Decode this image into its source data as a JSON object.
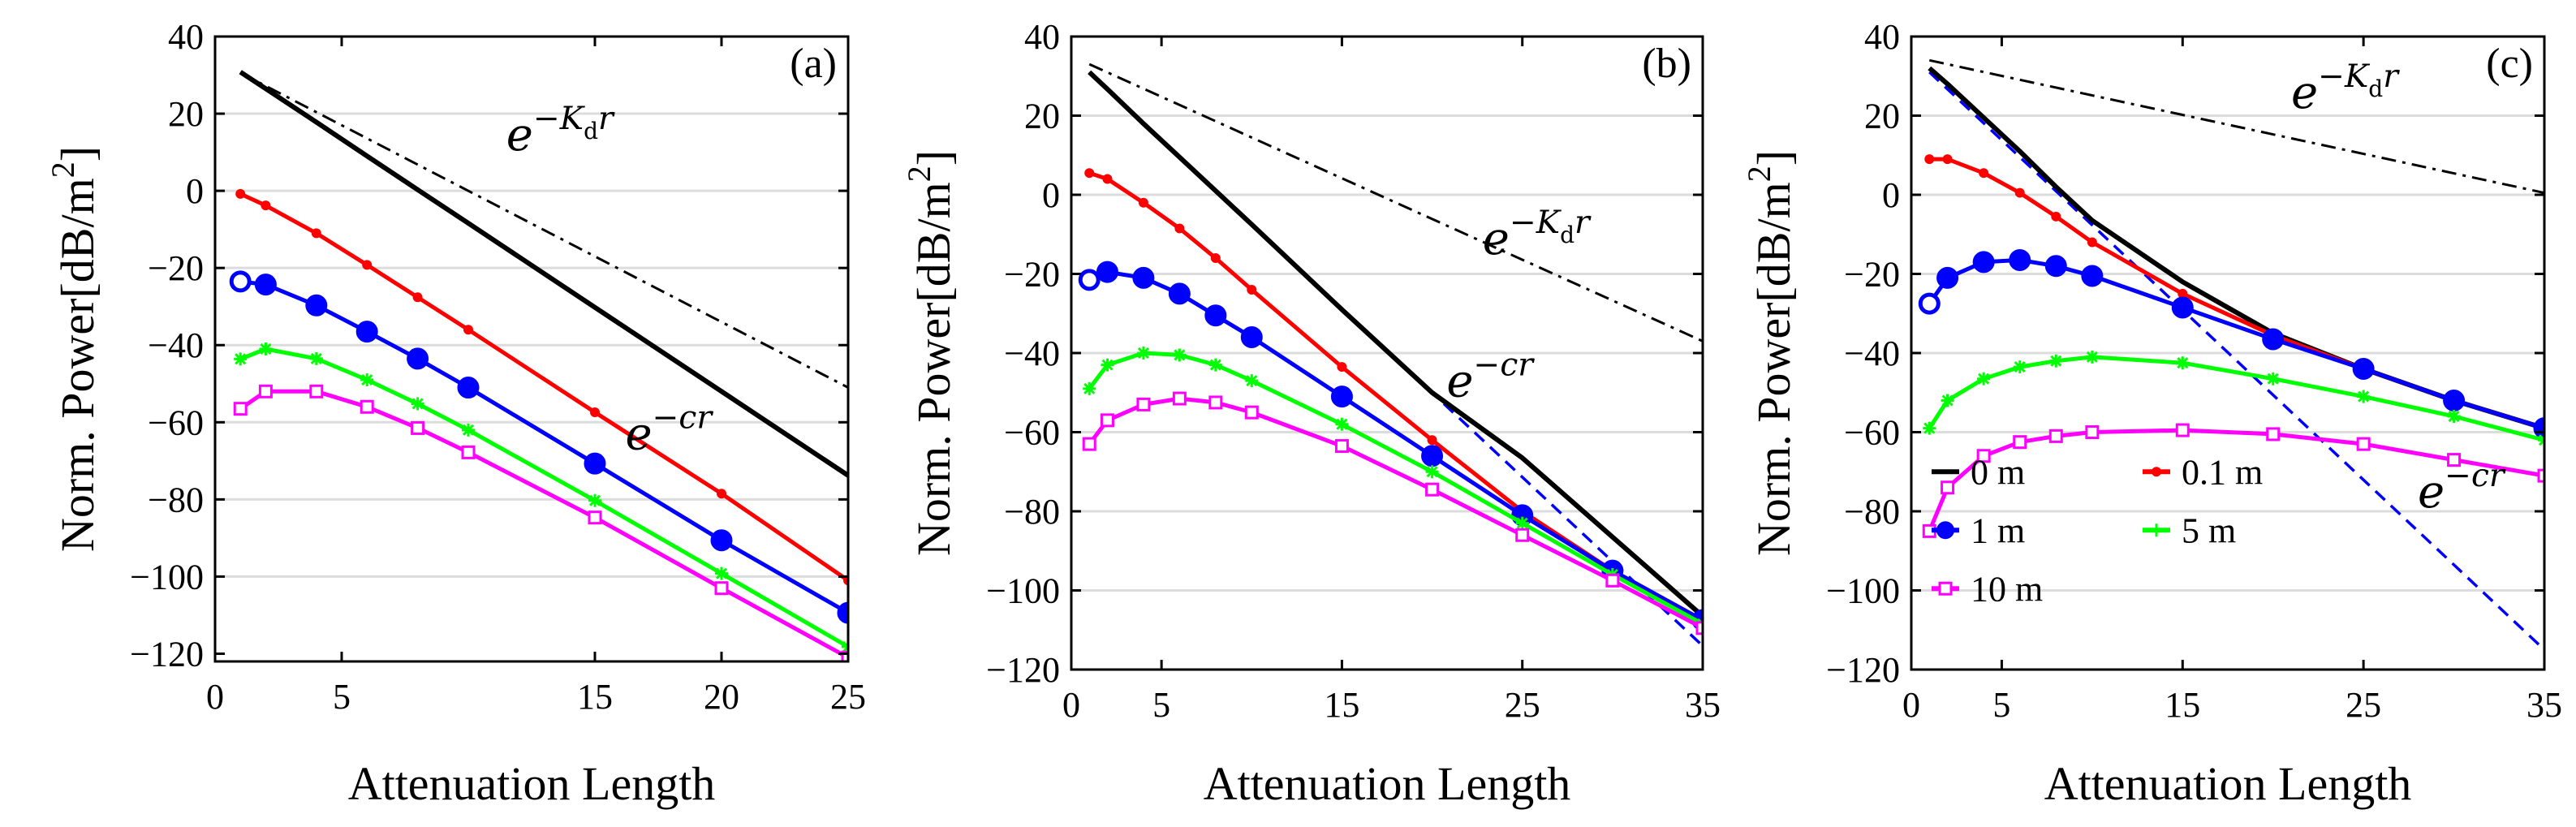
{
  "chart_data": [
    {
      "type": "line",
      "panel_label": "(a)",
      "xlabel": "Attenuation Length",
      "ylabel": "Norm. Power[dB/m",
      "ylabel_sup": "2",
      "ylabel_end": "]",
      "xlim": [
        0,
        25
      ],
      "ylim": [
        -122,
        40
      ],
      "xticks": [
        0,
        5,
        15,
        20,
        25
      ],
      "yticks": [
        40,
        20,
        0,
        -20,
        -40,
        -60,
        -80,
        -100,
        -120
      ],
      "grid": true,
      "annotations": [
        {
          "base": "e",
          "sup": "−K",
          "sub": "d",
          "tail": "r",
          "x": 11.5,
          "y": 10.5,
          "size": 56
        },
        {
          "base": "e",
          "sup": "−cr",
          "x": 16.2,
          "y": -67,
          "size": 56
        }
      ],
      "series": [
        {
          "name": "e^{-K_d r}",
          "style": "dashdot",
          "color": "#000000",
          "x": [
            1,
            25
          ],
          "y": [
            30.6,
            -51
          ]
        },
        {
          "name": "e^{-cr}",
          "style": "dashed",
          "color": "#0000ff",
          "x": [
            1,
            25
          ],
          "y": [
            30.6,
            -74
          ]
        },
        {
          "name": "0 m",
          "color": "#000000",
          "marker": "none",
          "width": 6,
          "x": [
            1,
            2,
            4,
            6,
            8,
            10,
            15,
            20,
            25
          ],
          "y": [
            30.8,
            26.5,
            17.8,
            9,
            0.3,
            -8.4,
            -30.2,
            -52,
            -73.8
          ]
        },
        {
          "name": "0.1 m",
          "color": "#ff0000",
          "marker": "dot",
          "x": [
            1,
            2,
            4,
            6,
            8,
            10,
            15,
            20,
            25
          ],
          "y": [
            -0.8,
            -3.8,
            -11,
            -19.2,
            -27.6,
            -36,
            -57.4,
            -78.5,
            -101
          ]
        },
        {
          "name": "1 m",
          "color": "#0000ff",
          "marker": "circle",
          "x": [
            1,
            2,
            4,
            6,
            8,
            10,
            15,
            20,
            25
          ],
          "y": [
            -23.5,
            -24.3,
            -29.7,
            -36.5,
            -43.5,
            -51,
            -70.7,
            -90.6,
            -109.4
          ]
        },
        {
          "name": "5 m",
          "color": "#00ff00",
          "marker": "star",
          "x": [
            1,
            2,
            4,
            6,
            8,
            10,
            15,
            20,
            25
          ],
          "y": [
            -43.6,
            -41,
            -43.5,
            -49,
            -55.2,
            -62,
            -80.3,
            -99.2,
            -118.2
          ]
        },
        {
          "name": "10 m",
          "color": "#ff00ff",
          "marker": "square",
          "x": [
            1,
            2,
            4,
            6,
            8,
            10,
            15,
            20,
            25
          ],
          "y": [
            -56.5,
            -52,
            -52,
            -56,
            -61.5,
            -67.8,
            -84.7,
            -103,
            -121
          ]
        }
      ]
    },
    {
      "type": "line",
      "panel_label": "(b)",
      "xlabel": "Attenuation Length",
      "ylabel": "Norm. Power[dB/m",
      "ylabel_sup": "2",
      "ylabel_end": "]",
      "xlim": [
        0,
        35
      ],
      "ylim": [
        -120,
        40
      ],
      "xticks": [
        0,
        5,
        15,
        25,
        35
      ],
      "yticks": [
        40,
        20,
        0,
        -20,
        -40,
        -60,
        -80,
        -100,
        -120
      ],
      "grid": true,
      "annotations": [
        {
          "base": "e",
          "sup": "−K",
          "sub": "d",
          "tail": "r",
          "x": 22.8,
          "y": -15,
          "size": 56
        },
        {
          "base": "e",
          "sup": "−cr",
          "x": 20.8,
          "y": -51,
          "size": 56
        }
      ],
      "series": [
        {
          "name": "e^{-K_d r}",
          "style": "dashdot",
          "color": "#000000",
          "x": [
            1,
            35
          ],
          "y": [
            33,
            -37
          ]
        },
        {
          "name": "e^{-cr}",
          "style": "dashed",
          "color": "#0000ff",
          "x": [
            1,
            35
          ],
          "y": [
            31,
            -114
          ]
        },
        {
          "name": "0 m",
          "color": "#000000",
          "marker": "none",
          "width": 6,
          "x": [
            1,
            2,
            4,
            6,
            8,
            10,
            15,
            20,
            25,
            30,
            35
          ],
          "y": [
            31,
            26.7,
            18,
            9.5,
            1,
            -7.5,
            -29,
            -50,
            -66.5,
            -86.5,
            -106.5
          ]
        },
        {
          "name": "0.1 m",
          "color": "#ff0000",
          "marker": "dot",
          "x": [
            1,
            2,
            4,
            6,
            8,
            10,
            15,
            20,
            25,
            30,
            35
          ],
          "y": [
            5.5,
            4,
            -2,
            -8.5,
            -16,
            -24,
            -43.5,
            -62,
            -80,
            -95,
            -107.5
          ]
        },
        {
          "name": "1 m",
          "color": "#0000ff",
          "marker": "circle",
          "x": [
            1,
            2,
            4,
            6,
            8,
            10,
            15,
            20,
            25,
            30,
            35
          ],
          "y": [
            -21.5,
            -19.5,
            -21,
            -25,
            -30.5,
            -36,
            -51,
            -66,
            -81,
            -95,
            -107.5
          ]
        },
        {
          "name": "5 m",
          "color": "#00ff00",
          "marker": "star",
          "x": [
            1,
            2,
            4,
            6,
            8,
            10,
            15,
            20,
            25,
            30,
            35
          ],
          "y": [
            -49,
            -43,
            -40,
            -40.5,
            -43,
            -47,
            -58,
            -70,
            -83,
            -96,
            -108.5
          ]
        },
        {
          "name": "10 m",
          "color": "#ff00ff",
          "marker": "square",
          "x": [
            1,
            2,
            4,
            6,
            8,
            10,
            15,
            20,
            25,
            30,
            35
          ],
          "y": [
            -63,
            -57,
            -53,
            -51.5,
            -52.5,
            -55,
            -63.5,
            -74.5,
            -86,
            -97.5,
            -109.5
          ]
        }
      ]
    },
    {
      "type": "line",
      "panel_label": "(c)",
      "xlabel": "Attenuation Length",
      "ylabel": "Norm. Power[dB/m",
      "ylabel_sup": "2",
      "ylabel_end": "]",
      "xlim": [
        0,
        35
      ],
      "ylim": [
        -120,
        40
      ],
      "xticks": [
        0,
        5,
        15,
        25,
        35
      ],
      "yticks": [
        40,
        20,
        0,
        -20,
        -40,
        -60,
        -80,
        -100,
        -120
      ],
      "grid": true,
      "legend_position": "lower-left",
      "annotations": [
        {
          "base": "e",
          "sup": "−K",
          "sub": "d",
          "tail": "r",
          "x": 21,
          "y": 22,
          "size": 56
        },
        {
          "base": "e",
          "sup": "−cr",
          "x": 28,
          "y": -79,
          "size": 56
        }
      ],
      "series": [
        {
          "name": "e^{-K_d r}",
          "style": "dashdot",
          "color": "#000000",
          "x": [
            1,
            35
          ],
          "y": [
            34,
            0.5
          ]
        },
        {
          "name": "e^{-cr}",
          "style": "dashed",
          "color": "#0000ff",
          "x": [
            1,
            35
          ],
          "y": [
            31,
            -115
          ]
        },
        {
          "name": "0 m",
          "color": "#000000",
          "marker": "none",
          "width": 6,
          "x": [
            1,
            2,
            4,
            6,
            8,
            10,
            15,
            20,
            25,
            30,
            35
          ],
          "y": [
            32,
            28,
            19.5,
            11,
            2,
            -6.5,
            -22,
            -35,
            -44,
            -52,
            -59
          ]
        },
        {
          "name": "0.1 m",
          "color": "#ff0000",
          "marker": "dot",
          "x": [
            1,
            2,
            4,
            6,
            8,
            10,
            15,
            20,
            25,
            30,
            35
          ],
          "y": [
            9,
            9,
            5.5,
            0.5,
            -5.5,
            -12,
            -25,
            -35.5,
            -44,
            -52,
            -59
          ]
        },
        {
          "name": "1 m",
          "color": "#0000ff",
          "marker": "circle",
          "x": [
            1,
            2,
            4,
            6,
            8,
            10,
            15,
            20,
            25,
            30,
            35
          ],
          "y": [
            -27.5,
            -21,
            -17,
            -16.5,
            -18,
            -20.5,
            -28.5,
            -36.5,
            -44,
            -52,
            -59
          ]
        },
        {
          "name": "5 m",
          "color": "#00ff00",
          "marker": "star",
          "x": [
            1,
            2,
            4,
            6,
            8,
            10,
            15,
            20,
            25,
            30,
            35
          ],
          "y": [
            -59,
            -52,
            -46.5,
            -43.5,
            -42,
            -41,
            -42.5,
            -46.5,
            -51,
            -56,
            -62
          ]
        },
        {
          "name": "10 m",
          "color": "#ff00ff",
          "marker": "square",
          "x": [
            1,
            2,
            4,
            6,
            8,
            10,
            15,
            20,
            25,
            30,
            35
          ],
          "y": [
            -85,
            -74,
            -66,
            -62.5,
            -61,
            -60,
            -59.5,
            -60.5,
            -63,
            -67,
            -71
          ]
        }
      ],
      "legend": [
        "0 m",
        "0.1 m",
        "1 m",
        "5 m",
        "10 m"
      ]
    }
  ]
}
